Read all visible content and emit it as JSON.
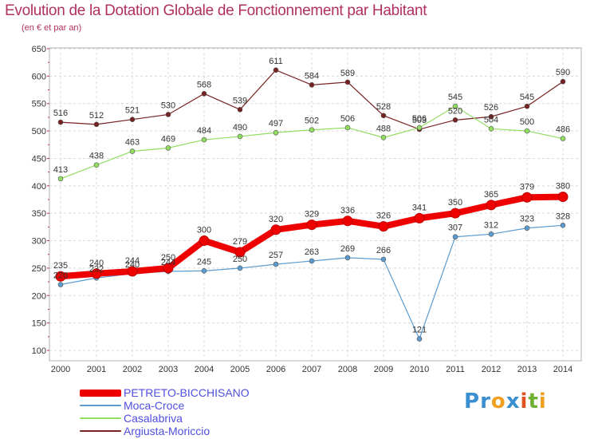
{
  "header": {
    "title": "Evolution de la Dotation Globale de Fonctionnement par Habitant",
    "subtitle": "(en € et par an)"
  },
  "logo": {
    "text": "Proxiti",
    "letters": [
      {
        "ch": "P",
        "color": "#3a8fd0"
      },
      {
        "ch": "r",
        "color": "#3a8fd0"
      },
      {
        "ch": "o",
        "color": "#f0a020"
      },
      {
        "ch": "x",
        "color": "#3a8fd0"
      },
      {
        "ch": "i",
        "color": "#e05020"
      },
      {
        "ch": "t",
        "color": "#70b030"
      },
      {
        "ch": "i",
        "color": "#f0a020"
      }
    ]
  },
  "chart_data": {
    "type": "line",
    "title": "Evolution de la Dotation Globale de Fonctionnement par Habitant",
    "subtitle": "(en € et par an)",
    "x": [
      "2000",
      "2001",
      "2002",
      "2003",
      "2004",
      "2005",
      "2006",
      "2007",
      "2008",
      "2009",
      "2010",
      "2011",
      "2012",
      "2013",
      "2014"
    ],
    "ylim": [
      100,
      650
    ],
    "yticks": [
      100,
      150,
      200,
      250,
      300,
      350,
      400,
      450,
      500,
      550,
      600,
      650
    ],
    "grid": true,
    "legend_position": "bottom-left",
    "series": [
      {
        "name": "PETRETO-BICCHISANO",
        "color": "#ee0000",
        "values": [
          235,
          240,
          244,
          250,
          300,
          279,
          320,
          329,
          336,
          326,
          341,
          350,
          365,
          379,
          380
        ]
      },
      {
        "name": "Moca-Croce",
        "color": "#5b9bd0",
        "values": [
          220,
          232,
          240,
          244,
          245,
          250,
          257,
          263,
          269,
          266,
          121,
          307,
          312,
          323,
          328
        ]
      },
      {
        "name": "Casalabriva",
        "color": "#90dd60",
        "values": [
          413,
          438,
          463,
          469,
          484,
          490,
          497,
          502,
          506,
          488,
          506,
          545,
          504,
          500,
          486
        ]
      },
      {
        "name": "Argiusta-Moriccio",
        "color": "#772222",
        "values": [
          516,
          512,
          521,
          530,
          568,
          539,
          611,
          584,
          589,
          528,
          503,
          520,
          526,
          545,
          590
        ]
      }
    ]
  }
}
